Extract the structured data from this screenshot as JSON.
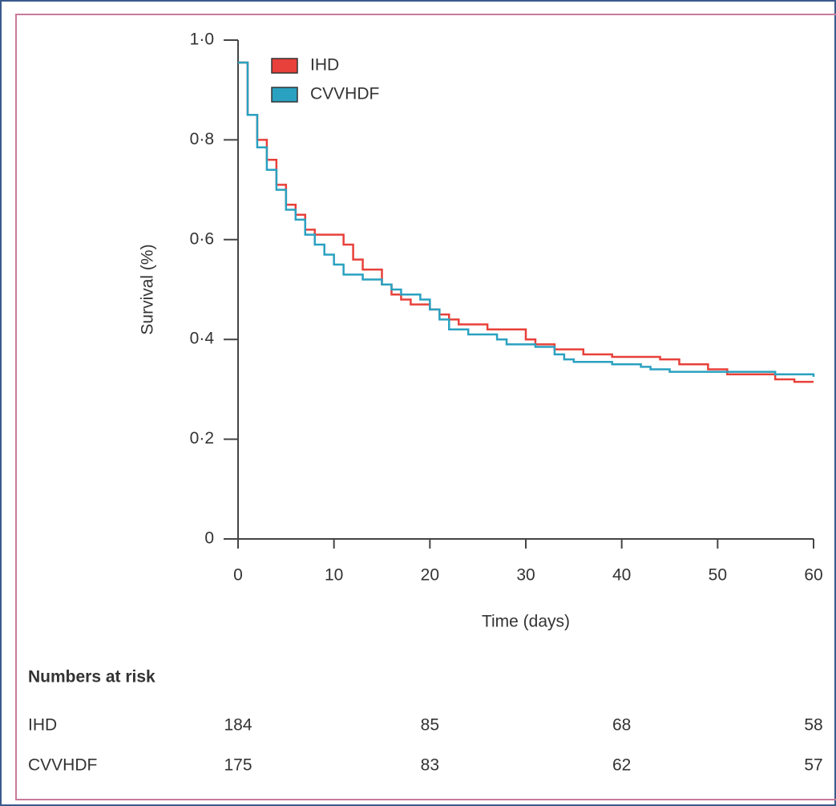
{
  "chart_data": {
    "type": "step",
    "ylabel": "Survival (%)",
    "xlabel": "Time (days)",
    "xlim": [
      0,
      60
    ],
    "ylim": [
      0,
      1
    ],
    "xticks": [
      0,
      10,
      20,
      30,
      40,
      50,
      60
    ],
    "yticks": [
      0,
      {
        "value": 0.2,
        "label": "0·2"
      },
      {
        "value": 0.4,
        "label": "0·4"
      },
      {
        "value": 0.6,
        "label": "0·6"
      },
      {
        "value": 0.8,
        "label": "0·8"
      },
      {
        "value": 1,
        "label": "1·0"
      }
    ],
    "legend": "upper left",
    "series": [
      {
        "name": "IHD",
        "color": "#e8403a",
        "x": [
          0,
          1,
          2,
          3,
          4,
          5,
          6,
          7,
          8,
          11,
          12,
          13,
          15,
          16,
          17,
          18,
          20,
          21,
          22,
          23,
          26,
          30,
          31,
          33,
          36,
          39,
          44,
          46,
          49,
          51,
          56,
          58,
          60
        ],
        "values": [
          0.955,
          0.85,
          0.8,
          0.76,
          0.71,
          0.67,
          0.65,
          0.62,
          0.61,
          0.59,
          0.56,
          0.54,
          0.51,
          0.49,
          0.48,
          0.47,
          0.46,
          0.45,
          0.44,
          0.43,
          0.42,
          0.4,
          0.39,
          0.38,
          0.37,
          0.365,
          0.36,
          0.35,
          0.34,
          0.33,
          0.32,
          0.315,
          0.315
        ]
      },
      {
        "name": "CVVHDF",
        "color": "#2aa1c0",
        "x": [
          0,
          1,
          2,
          3,
          4,
          5,
          6,
          7,
          8,
          9,
          10,
          11,
          13,
          15,
          16,
          17,
          19,
          20,
          21,
          22,
          24,
          27,
          28,
          31,
          33,
          34,
          35,
          39,
          42,
          43,
          45,
          56,
          59,
          60
        ],
        "values": [
          0.955,
          0.85,
          0.785,
          0.74,
          0.7,
          0.66,
          0.64,
          0.61,
          0.59,
          0.57,
          0.55,
          0.53,
          0.52,
          0.51,
          0.5,
          0.49,
          0.48,
          0.46,
          0.44,
          0.42,
          0.41,
          0.4,
          0.39,
          0.385,
          0.37,
          0.36,
          0.355,
          0.35,
          0.345,
          0.34,
          0.335,
          0.33,
          0.33,
          0.325
        ]
      }
    ],
    "risk_table": {
      "title": "Numbers at risk",
      "rows": [
        {
          "name": "IHD",
          "values": [
            184,
            85,
            68,
            58
          ]
        },
        {
          "name": "CVVHDF",
          "values": [
            175,
            83,
            62,
            57
          ]
        }
      ]
    }
  }
}
